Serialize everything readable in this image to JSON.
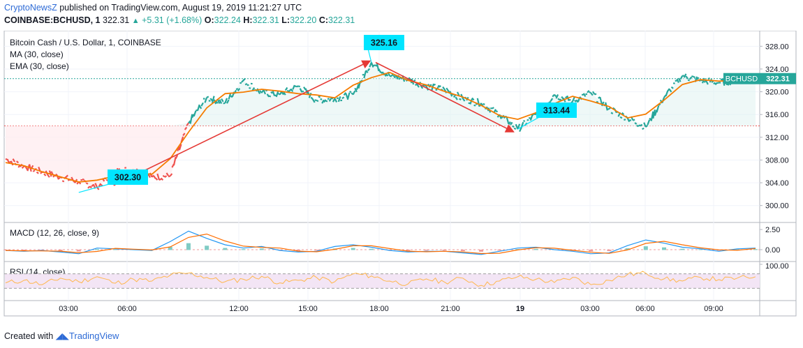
{
  "header": {
    "author": "CryptoNewsZ",
    "published_text": "published on TradingView.com, August 19, 2019 11:21:27 UTC",
    "symbol": "COINBASE:BCHUSD, 1",
    "last": "322.31",
    "change": "+5.31 (+1.68%)",
    "o_label": "O:",
    "o_value": "322.24",
    "h_label": "H:",
    "h_value": "322.31",
    "l_label": "L:",
    "l_value": "322.20",
    "c_label": "C:",
    "c_value": "322.31"
  },
  "footer": {
    "created_with": "Created with",
    "brand": "TradingView"
  },
  "colors": {
    "up": "#26a69a",
    "down": "#ef5350",
    "ma": "#f57c00",
    "annotation": "#00e5ff",
    "arrow": "#e53935",
    "macd": "#2196f3",
    "signal": "#ff6d00",
    "rsi": "#ffb74d",
    "rsi_band": "#f3e5f5"
  },
  "chart_data": [
    {
      "type": "line",
      "title": "Bitcoin Cash / U.S. Dollar, 1, COINBASE",
      "indicators": [
        "MA (30, close)",
        "EMA (30, close)"
      ],
      "x_ticks": [
        "03:00",
        "06:00",
        "12:00",
        "15:00",
        "18:00",
        "21:00",
        "19",
        "03:00",
        "06:00",
        "09:00"
      ],
      "y_ticks": [
        "300.00",
        "304.00",
        "308.00",
        "312.00",
        "316.00",
        "320.00",
        "324.00",
        "328.00"
      ],
      "ylim": [
        298,
        330
      ],
      "series": [
        {
          "name": "BCHUSD",
          "x": [
            "01:00",
            "02:00",
            "03:00",
            "04:00",
            "04:30",
            "05:00",
            "06:00",
            "07:00",
            "08:00",
            "09:00",
            "09:30",
            "10:00",
            "11:00",
            "11:30",
            "12:00",
            "13:00",
            "14:00",
            "15:00",
            "16:00",
            "17:00",
            "17:30",
            "18:00",
            "19:00",
            "20:00",
            "21:00",
            "22:00",
            "23:00",
            "00:00",
            "00:30",
            "01:00",
            "02:00",
            "03:00",
            "04:00",
            "05:00",
            "05:30",
            "06:00",
            "06:30",
            "07:00",
            "08:00",
            "09:00",
            "10:00",
            "11:00"
          ],
          "values": [
            308.2,
            306.9,
            305.9,
            305.0,
            304.2,
            303.2,
            306.0,
            306.3,
            305.0,
            305.2,
            314.5,
            319.0,
            318.0,
            322.0,
            319.8,
            319.5,
            321.0,
            318.5,
            318.8,
            319.5,
            325.16,
            322.8,
            322.2,
            321.0,
            320.4,
            318.8,
            318.0,
            316.0,
            313.44,
            316.0,
            319.5,
            318.3,
            319.8,
            317.0,
            315.4,
            313.8,
            319.0,
            322.8,
            322.0,
            321.6,
            322.0,
            322.31
          ]
        }
      ],
      "current_price_label": "BCHUSD",
      "current_price": "322.31",
      "annotations": [
        {
          "label": "302.30",
          "x": "04:30",
          "y": 302.3
        },
        {
          "label": "325.16",
          "x": "17:30",
          "y": 325.16
        },
        {
          "label": "313.44",
          "x": "00:30",
          "y": 313.44
        }
      ]
    },
    {
      "type": "line",
      "title": "MACD (12, 26, close, 9)",
      "y_ticks": [
        "2.50",
        "0.00"
      ],
      "ylim": [
        -1.3,
        3.2
      ],
      "series": [
        {
          "name": "MACD",
          "values": [
            -0.1,
            -0.2,
            -0.1,
            -0.3,
            -0.5,
            0.2,
            0.1,
            0.0,
            -0.1,
            1.0,
            2.3,
            1.4,
            0.6,
            0.2,
            0.4,
            -0.1,
            -0.3,
            -0.2,
            0.4,
            0.6,
            0.3,
            -0.1,
            -0.3,
            -0.2,
            -0.2,
            -0.4,
            -0.6,
            -0.2,
            0.2,
            0.3,
            0.0,
            -0.2,
            -0.5,
            -0.4,
            0.5,
            1.2,
            0.8,
            0.3,
            0.1,
            -0.2,
            0.1,
            0.2
          ]
        }
      ]
    },
    {
      "type": "line",
      "title": "RSI (14, close)",
      "y_ticks": [
        "100.00"
      ],
      "ylim": [
        0,
        100
      ],
      "band": [
        30,
        70
      ],
      "series": [
        {
          "name": "RSI",
          "values": [
            45,
            52,
            40,
            58,
            48,
            62,
            44,
            55,
            50,
            66,
            72,
            60,
            48,
            55,
            63,
            45,
            52,
            60,
            48,
            70,
            64,
            50,
            42,
            56,
            47,
            58,
            38,
            50,
            62,
            55,
            46,
            60,
            40,
            52,
            68,
            72,
            56,
            50,
            60,
            54,
            58,
            62
          ]
        }
      ]
    }
  ]
}
